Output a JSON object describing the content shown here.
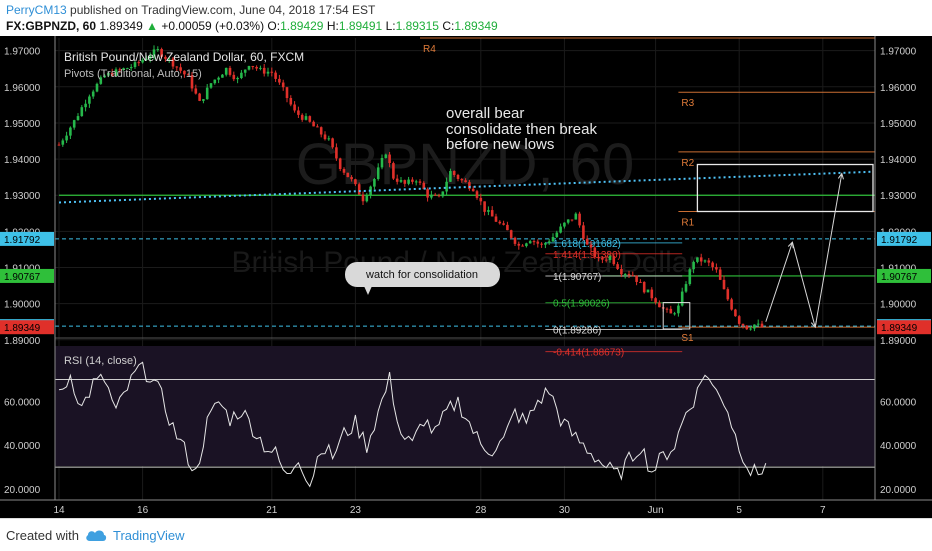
{
  "header": {
    "author": "PerryCM13",
    "published_text": "published on TradingView.com, June 04, 2018 17:54 EST",
    "symbol": "FX:GBPNZD, 60",
    "last": "1.89349",
    "change": "+0.00059 (+0.03%)",
    "o_label": "O:",
    "o_value": "1.89429",
    "h_label": "H:",
    "h_value": "1.89491",
    "l_label": "L:",
    "l_value": "1.89315",
    "c_label": "C:",
    "c_value": "1.89349"
  },
  "footer": {
    "created_with": "Created with",
    "brand": "TradingView"
  },
  "colors": {
    "background": "#000000",
    "bull": "#26b84b",
    "bear": "#e0302a",
    "grid": "#1b1b1b",
    "rsi_band": "#1a1224",
    "trend": "#4fc3f7",
    "support": "#2fbf3a",
    "fib_blue": "#3ec1e8",
    "fib_red": "#e0302a",
    "pivot": "#e07b39",
    "annotation": "#e8e8e8"
  },
  "chart_data": [
    {
      "type": "candlestick",
      "title": "British Pound/New Zealand Dollar, 60, FXCM",
      "subtitle": "Pivots (Traditional, Auto, 15)",
      "watermark": "GBPNZD, 60",
      "watermark_sub": "British Pound / New Zealand Dollar",
      "ylim": [
        1.8905,
        1.9735
      ],
      "y_ticks": [
        "1.97000",
        "1.96000",
        "1.95000",
        "1.94000",
        "1.93000",
        "1.92000",
        "1.91000",
        "1.90000",
        "1.89000"
      ],
      "x_ticks": [
        "14",
        "16",
        "21",
        "23",
        "28",
        "30",
        "Jun",
        "5",
        "7"
      ],
      "price_labels": [
        {
          "value": "1.91792",
          "color": "#3ec1e8"
        },
        {
          "value": "1.90767",
          "color": "#2fbf3a"
        },
        {
          "value": "1.89378",
          "color": "#3ec1e8"
        },
        {
          "value": "1.89349",
          "color": "#e0302a"
        }
      ],
      "pivots": [
        {
          "label": "R4",
          "value": 1.9735
        },
        {
          "label": "R3",
          "value": 1.9585
        },
        {
          "label": "R2",
          "value": 1.942
        },
        {
          "label": "R1",
          "value": 1.9255
        },
        {
          "label": "S1",
          "value": 1.8935
        }
      ],
      "support_lines": [
        1.93,
        1.90767
      ],
      "fib": [
        {
          "label": "1.618(1.91682)",
          "value": 1.91682,
          "color": "#3ec1e8"
        },
        {
          "label": "1.414(1.91380)",
          "value": 1.9138,
          "color": "#e0302a"
        },
        {
          "label": "1(1.90767)",
          "value": 1.90767,
          "color": "#dddddd"
        },
        {
          "label": "0.5(1.90026)",
          "value": 1.90026,
          "color": "#2fbf3a"
        },
        {
          "label": "0(1.89286)",
          "value": 1.89286,
          "color": "#dddddd"
        },
        {
          "label": "-0.414(1.88673)",
          "value": 1.88673,
          "color": "#e0302a"
        }
      ],
      "price_path": [
        [
          0,
          1.944
        ],
        [
          4,
          1.9505
        ],
        [
          8,
          1.958
        ],
        [
          12,
          1.963
        ],
        [
          16,
          1.9645
        ],
        [
          20,
          1.966
        ],
        [
          24,
          1.969
        ],
        [
          26,
          1.97
        ],
        [
          30,
          1.9665
        ],
        [
          34,
          1.9625
        ],
        [
          37,
          1.9555
        ],
        [
          40,
          1.961
        ],
        [
          44,
          1.965
        ],
        [
          47,
          1.962
        ],
        [
          50,
          1.9665
        ],
        [
          53,
          1.9645
        ],
        [
          56,
          1.964
        ],
        [
          59,
          1.959
        ],
        [
          62,
          1.953
        ],
        [
          65,
          1.951
        ],
        [
          68,
          1.948
        ],
        [
          71,
          1.945
        ],
        [
          74,
          1.938
        ],
        [
          77,
          1.934
        ],
        [
          80,
          1.929
        ],
        [
          83,
          1.9345
        ],
        [
          86,
          1.942
        ],
        [
          88,
          1.935
        ],
        [
          91,
          1.933
        ],
        [
          94,
          1.9345
        ],
        [
          97,
          1.93
        ],
        [
          100,
          1.929
        ],
        [
          103,
          1.9365
        ],
        [
          106,
          1.934
        ],
        [
          109,
          1.932
        ],
        [
          112,
          1.926
        ],
        [
          115,
          1.923
        ],
        [
          118,
          1.92
        ],
        [
          121,
          1.916
        ],
        [
          124,
          1.918
        ],
        [
          127,
          1.916
        ],
        [
          130,
          1.9185
        ],
        [
          133,
          1.922
        ],
        [
          136,
          1.9245
        ],
        [
          139,
          1.916
        ],
        [
          142,
          1.912
        ],
        [
          145,
          1.913
        ],
        [
          148,
          1.909
        ],
        [
          151,
          1.908
        ],
        [
          154,
          1.904
        ],
        [
          157,
          1.901
        ],
        [
          159,
          1.8985
        ],
        [
          161,
          1.897
        ],
        [
          163,
          1.899
        ],
        [
          165,
          1.906
        ],
        [
          167,
          1.912
        ],
        [
          169,
          1.912
        ],
        [
          171,
          1.911
        ],
        [
          173,
          1.909
        ],
        [
          175,
          1.9035
        ],
        [
          177,
          1.899
        ],
        [
          179,
          1.895
        ],
        [
          181,
          1.8935
        ],
        [
          183,
          1.8942
        ],
        [
          185,
          1.8935
        ]
      ],
      "trend_line": [
        [
          0,
          1.928
        ],
        [
          214,
          1.9365
        ]
      ],
      "annotations": [
        "overall bear",
        "consolidate then break",
        "before new lows"
      ],
      "callout": "watch for consolidation"
    },
    {
      "type": "line",
      "title": "RSI (14, close)",
      "ylim": [
        15,
        88
      ],
      "levels": [
        70,
        30
      ],
      "y_ticks": [
        "60.0000",
        "40.0000",
        "20.0000"
      ],
      "path": [
        [
          0,
          62
        ],
        [
          3,
          72
        ],
        [
          6,
          57
        ],
        [
          9,
          68
        ],
        [
          12,
          70
        ],
        [
          15,
          55
        ],
        [
          18,
          66
        ],
        [
          21,
          75
        ],
        [
          24,
          72
        ],
        [
          27,
          62
        ],
        [
          30,
          48
        ],
        [
          33,
          38
        ],
        [
          36,
          27
        ],
        [
          39,
          50
        ],
        [
          42,
          60
        ],
        [
          45,
          52
        ],
        [
          48,
          56
        ],
        [
          51,
          48
        ],
        [
          54,
          40
        ],
        [
          57,
          36
        ],
        [
          60,
          25
        ],
        [
          63,
          35
        ],
        [
          66,
          22
        ],
        [
          69,
          40
        ],
        [
          72,
          35
        ],
        [
          75,
          45
        ],
        [
          78,
          50
        ],
        [
          81,
          40
        ],
        [
          84,
          55
        ],
        [
          87,
          70
        ],
        [
          90,
          45
        ],
        [
          93,
          40
        ],
        [
          96,
          52
        ],
        [
          99,
          45
        ],
        [
          102,
          55
        ],
        [
          105,
          60
        ],
        [
          108,
          50
        ],
        [
          111,
          40
        ],
        [
          114,
          38
        ],
        [
          117,
          42
        ],
        [
          120,
          55
        ],
        [
          123,
          50
        ],
        [
          126,
          60
        ],
        [
          129,
          65
        ],
        [
          132,
          52
        ],
        [
          135,
          45
        ],
        [
          138,
          40
        ],
        [
          141,
          35
        ],
        [
          144,
          30
        ],
        [
          147,
          26
        ],
        [
          150,
          33
        ],
        [
          153,
          40
        ],
        [
          156,
          28
        ],
        [
          159,
          35
        ],
        [
          162,
          40
        ],
        [
          165,
          55
        ],
        [
          168,
          64
        ],
        [
          170,
          74
        ],
        [
          172,
          66
        ],
        [
          174,
          64
        ],
        [
          176,
          56
        ],
        [
          178,
          44
        ],
        [
          180,
          36
        ],
        [
          182,
          28
        ],
        [
          184,
          27
        ],
        [
          186,
          32
        ]
      ]
    }
  ]
}
